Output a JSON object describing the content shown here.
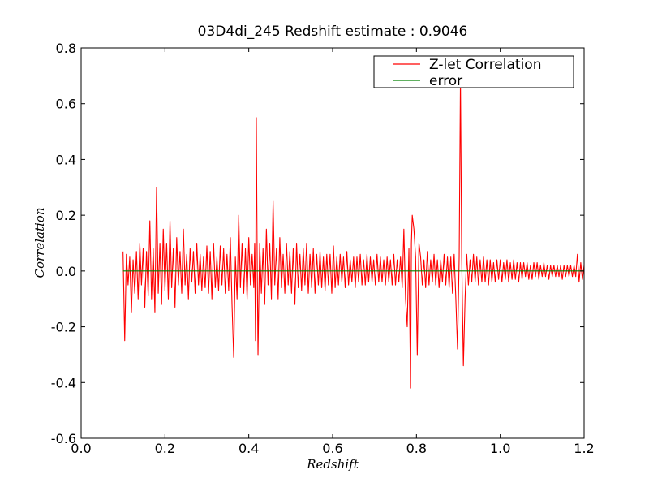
{
  "chart_data": {
    "type": "line",
    "title": "03D4di_245 Redshift estimate : 0.9046",
    "xlabel": "Redshift",
    "ylabel": "Correlation",
    "xlim": [
      0.0,
      1.2
    ],
    "ylim": [
      -0.6,
      0.8
    ],
    "x_ticks": [
      0.0,
      0.2,
      0.4,
      0.6,
      0.8,
      1.0,
      1.2
    ],
    "x_tick_labels": [
      "0.0",
      "0.2",
      "0.4",
      "0.6",
      "0.8",
      "1.0",
      "1.2"
    ],
    "y_ticks": [
      0.8,
      0.6,
      0.4,
      0.2,
      0.0,
      -0.2,
      -0.4,
      -0.6
    ],
    "y_tick_labels": [
      "0.8",
      "0.6",
      "0.4",
      "0.2",
      "0.0",
      "-0.2",
      "-0.4",
      "-0.6"
    ],
    "grid": false,
    "legend_position": "top-right",
    "series": [
      {
        "name": "Z-let Correlation",
        "color": "#ff0000",
        "anchors": [
          [
            0.1,
            0.07
          ],
          [
            0.104,
            -0.25
          ],
          [
            0.108,
            0.06
          ],
          [
            0.112,
            -0.05
          ],
          [
            0.116,
            0.05
          ],
          [
            0.12,
            -0.15
          ],
          [
            0.124,
            0.04
          ],
          [
            0.128,
            -0.08
          ],
          [
            0.132,
            0.07
          ],
          [
            0.136,
            -0.1
          ],
          [
            0.14,
            0.1
          ],
          [
            0.144,
            -0.05
          ],
          [
            0.148,
            0.08
          ],
          [
            0.152,
            -0.13
          ],
          [
            0.156,
            0.07
          ],
          [
            0.16,
            -0.09
          ],
          [
            0.164,
            0.18
          ],
          [
            0.168,
            -0.1
          ],
          [
            0.172,
            0.08
          ],
          [
            0.176,
            -0.15
          ],
          [
            0.18,
            0.3
          ],
          [
            0.184,
            -0.08
          ],
          [
            0.188,
            0.1
          ],
          [
            0.192,
            -0.12
          ],
          [
            0.196,
            0.15
          ],
          [
            0.2,
            -0.07
          ],
          [
            0.204,
            0.1
          ],
          [
            0.208,
            -0.1
          ],
          [
            0.212,
            0.18
          ],
          [
            0.216,
            -0.06
          ],
          [
            0.22,
            0.08
          ],
          [
            0.224,
            -0.13
          ],
          [
            0.228,
            0.12
          ],
          [
            0.232,
            -0.05
          ],
          [
            0.236,
            0.07
          ],
          [
            0.24,
            -0.08
          ],
          [
            0.244,
            0.15
          ],
          [
            0.248,
            -0.05
          ],
          [
            0.252,
            0.06
          ],
          [
            0.256,
            -0.1
          ],
          [
            0.26,
            0.08
          ],
          [
            0.264,
            -0.04
          ],
          [
            0.268,
            0.07
          ],
          [
            0.272,
            -0.08
          ],
          [
            0.276,
            0.1
          ],
          [
            0.28,
            -0.05
          ],
          [
            0.284,
            0.06
          ],
          [
            0.288,
            -0.07
          ],
          [
            0.292,
            0.05
          ],
          [
            0.296,
            -0.06
          ],
          [
            0.3,
            0.09
          ],
          [
            0.304,
            -0.08
          ],
          [
            0.308,
            0.07
          ],
          [
            0.312,
            -0.1
          ],
          [
            0.316,
            0.1
          ],
          [
            0.32,
            -0.06
          ],
          [
            0.324,
            0.05
          ],
          [
            0.328,
            -0.07
          ],
          [
            0.332,
            0.09
          ],
          [
            0.336,
            -0.05
          ],
          [
            0.34,
            0.08
          ],
          [
            0.344,
            -0.08
          ],
          [
            0.348,
            0.06
          ],
          [
            0.352,
            -0.07
          ],
          [
            0.356,
            0.12
          ],
          [
            0.36,
            -0.12
          ],
          [
            0.364,
            -0.31
          ],
          [
            0.368,
            0.05
          ],
          [
            0.372,
            -0.1
          ],
          [
            0.376,
            0.2
          ],
          [
            0.38,
            -0.06
          ],
          [
            0.384,
            0.1
          ],
          [
            0.388,
            -0.08
          ],
          [
            0.392,
            0.08
          ],
          [
            0.396,
            -0.1
          ],
          [
            0.4,
            0.12
          ],
          [
            0.404,
            -0.05
          ],
          [
            0.408,
            0.06
          ],
          [
            0.412,
            -0.06
          ],
          [
            0.414,
            0.1
          ],
          [
            0.416,
            -0.25
          ],
          [
            0.418,
            0.55
          ],
          [
            0.42,
            0.05
          ],
          [
            0.422,
            -0.3
          ],
          [
            0.426,
            0.1
          ],
          [
            0.43,
            -0.08
          ],
          [
            0.434,
            0.08
          ],
          [
            0.438,
            -0.12
          ],
          [
            0.442,
            0.15
          ],
          [
            0.446,
            -0.05
          ],
          [
            0.45,
            0.1
          ],
          [
            0.454,
            -0.1
          ],
          [
            0.458,
            0.25
          ],
          [
            0.462,
            -0.05
          ],
          [
            0.466,
            0.08
          ],
          [
            0.47,
            -0.1
          ],
          [
            0.474,
            0.12
          ],
          [
            0.478,
            -0.06
          ],
          [
            0.482,
            0.06
          ],
          [
            0.486,
            -0.08
          ],
          [
            0.49,
            0.1
          ],
          [
            0.494,
            -0.05
          ],
          [
            0.498,
            0.07
          ],
          [
            0.502,
            -0.08
          ],
          [
            0.506,
            0.08
          ],
          [
            0.51,
            -0.12
          ],
          [
            0.514,
            0.1
          ],
          [
            0.518,
            -0.06
          ],
          [
            0.522,
            0.06
          ],
          [
            0.526,
            -0.07
          ],
          [
            0.53,
            0.08
          ],
          [
            0.534,
            -0.05
          ],
          [
            0.538,
            0.1
          ],
          [
            0.542,
            -0.08
          ],
          [
            0.546,
            0.06
          ],
          [
            0.55,
            -0.06
          ],
          [
            0.554,
            0.08
          ],
          [
            0.558,
            -0.08
          ],
          [
            0.562,
            0.06
          ],
          [
            0.566,
            -0.05
          ],
          [
            0.57,
            0.07
          ],
          [
            0.574,
            -0.06
          ],
          [
            0.578,
            0.05
          ],
          [
            0.582,
            -0.07
          ],
          [
            0.586,
            0.06
          ],
          [
            0.59,
            -0.05
          ],
          [
            0.594,
            0.06
          ],
          [
            0.598,
            -0.08
          ],
          [
            0.602,
            0.09
          ],
          [
            0.606,
            -0.06
          ],
          [
            0.61,
            0.05
          ],
          [
            0.614,
            -0.05
          ],
          [
            0.618,
            0.06
          ],
          [
            0.622,
            -0.04
          ],
          [
            0.626,
            0.05
          ],
          [
            0.63,
            -0.06
          ],
          [
            0.634,
            0.07
          ],
          [
            0.638,
            -0.05
          ],
          [
            0.642,
            0.04
          ],
          [
            0.646,
            -0.04
          ],
          [
            0.65,
            0.05
          ],
          [
            0.654,
            -0.06
          ],
          [
            0.658,
            0.05
          ],
          [
            0.662,
            -0.04
          ],
          [
            0.666,
            0.06
          ],
          [
            0.67,
            -0.05
          ],
          [
            0.674,
            0.04
          ],
          [
            0.678,
            -0.05
          ],
          [
            0.682,
            0.06
          ],
          [
            0.686,
            -0.04
          ],
          [
            0.69,
            0.05
          ],
          [
            0.694,
            -0.04
          ],
          [
            0.698,
            0.04
          ],
          [
            0.702,
            -0.05
          ],
          [
            0.706,
            0.06
          ],
          [
            0.71,
            -0.04
          ],
          [
            0.714,
            0.05
          ],
          [
            0.718,
            -0.04
          ],
          [
            0.722,
            0.04
          ],
          [
            0.726,
            -0.05
          ],
          [
            0.73,
            0.05
          ],
          [
            0.734,
            -0.04
          ],
          [
            0.738,
            0.04
          ],
          [
            0.742,
            -0.05
          ],
          [
            0.746,
            0.06
          ],
          [
            0.75,
            -0.05
          ],
          [
            0.754,
            0.04
          ],
          [
            0.758,
            -0.04
          ],
          [
            0.762,
            0.05
          ],
          [
            0.766,
            -0.06
          ],
          [
            0.77,
            0.15
          ],
          [
            0.774,
            -0.1
          ],
          [
            0.778,
            -0.2
          ],
          [
            0.782,
            0.08
          ],
          [
            0.786,
            -0.42
          ],
          [
            0.788,
            0.1
          ],
          [
            0.79,
            0.2
          ],
          [
            0.794,
            0.15
          ],
          [
            0.798,
            0.05
          ],
          [
            0.802,
            -0.3
          ],
          [
            0.806,
            0.1
          ],
          [
            0.81,
            0.05
          ],
          [
            0.814,
            -0.05
          ],
          [
            0.818,
            0.04
          ],
          [
            0.822,
            -0.06
          ],
          [
            0.826,
            0.07
          ],
          [
            0.83,
            -0.05
          ],
          [
            0.834,
            0.04
          ],
          [
            0.838,
            -0.04
          ],
          [
            0.842,
            0.06
          ],
          [
            0.846,
            -0.05
          ],
          [
            0.85,
            0.04
          ],
          [
            0.854,
            -0.06
          ],
          [
            0.858,
            0.04
          ],
          [
            0.862,
            -0.04
          ],
          [
            0.866,
            0.06
          ],
          [
            0.87,
            -0.05
          ],
          [
            0.874,
            0.05
          ],
          [
            0.878,
            -0.06
          ],
          [
            0.882,
            0.05
          ],
          [
            0.886,
            -0.08
          ],
          [
            0.89,
            0.06
          ],
          [
            0.894,
            -0.1
          ],
          [
            0.898,
            -0.28
          ],
          [
            0.902,
            0.05
          ],
          [
            0.905,
            0.69
          ],
          [
            0.908,
            0.05
          ],
          [
            0.912,
            -0.34
          ],
          [
            0.916,
            -0.1
          ],
          [
            0.92,
            0.06
          ],
          [
            0.924,
            -0.05
          ],
          [
            0.928,
            0.04
          ],
          [
            0.932,
            -0.04
          ],
          [
            0.936,
            0.06
          ],
          [
            0.94,
            -0.04
          ],
          [
            0.944,
            0.05
          ],
          [
            0.948,
            -0.05
          ],
          [
            0.952,
            0.04
          ],
          [
            0.956,
            -0.04
          ],
          [
            0.96,
            0.05
          ],
          [
            0.964,
            -0.04
          ],
          [
            0.968,
            0.04
          ],
          [
            0.972,
            -0.05
          ],
          [
            0.976,
            0.04
          ],
          [
            0.98,
            -0.04
          ],
          [
            0.984,
            0.03
          ],
          [
            0.988,
            -0.04
          ],
          [
            0.992,
            0.04
          ],
          [
            0.996,
            -0.03
          ],
          [
            1.0,
            0.04
          ],
          [
            1.004,
            -0.04
          ],
          [
            1.008,
            0.03
          ],
          [
            1.012,
            -0.03
          ],
          [
            1.016,
            0.04
          ],
          [
            1.02,
            -0.04
          ],
          [
            1.024,
            0.03
          ],
          [
            1.028,
            -0.03
          ],
          [
            1.032,
            0.04
          ],
          [
            1.036,
            -0.03
          ],
          [
            1.04,
            0.03
          ],
          [
            1.044,
            -0.04
          ],
          [
            1.048,
            0.03
          ],
          [
            1.052,
            -0.03
          ],
          [
            1.056,
            0.03
          ],
          [
            1.06,
            -0.02
          ],
          [
            1.064,
            0.03
          ],
          [
            1.068,
            -0.03
          ],
          [
            1.072,
            0.02
          ],
          [
            1.076,
            -0.03
          ],
          [
            1.08,
            0.03
          ],
          [
            1.084,
            -0.02
          ],
          [
            1.088,
            0.03
          ],
          [
            1.092,
            -0.03
          ],
          [
            1.096,
            0.02
          ],
          [
            1.1,
            -0.02
          ],
          [
            1.104,
            0.03
          ],
          [
            1.108,
            -0.02
          ],
          [
            1.112,
            0.02
          ],
          [
            1.116,
            -0.03
          ],
          [
            1.12,
            0.02
          ],
          [
            1.124,
            -0.02
          ],
          [
            1.128,
            0.02
          ],
          [
            1.132,
            -0.02
          ],
          [
            1.136,
            0.02
          ],
          [
            1.14,
            -0.02
          ],
          [
            1.144,
            0.02
          ],
          [
            1.148,
            -0.03
          ],
          [
            1.152,
            0.02
          ],
          [
            1.156,
            -0.02
          ],
          [
            1.16,
            0.02
          ],
          [
            1.164,
            -0.02
          ],
          [
            1.168,
            0.02
          ],
          [
            1.172,
            -0.02
          ],
          [
            1.176,
            0.02
          ],
          [
            1.18,
            -0.02
          ],
          [
            1.184,
            0.06
          ],
          [
            1.188,
            -0.04
          ],
          [
            1.192,
            0.03
          ],
          [
            1.196,
            -0.03
          ],
          [
            1.2,
            0.02
          ]
        ]
      },
      {
        "name": "error",
        "color": "#008000",
        "x": [
          0.1,
          1.2
        ],
        "y": [
          0.0,
          0.0
        ]
      }
    ],
    "annotations": [
      {
        "type": "marker",
        "shape": "triangle-down",
        "x": 0.9046,
        "y": 0.69,
        "color": "#000000"
      }
    ]
  }
}
